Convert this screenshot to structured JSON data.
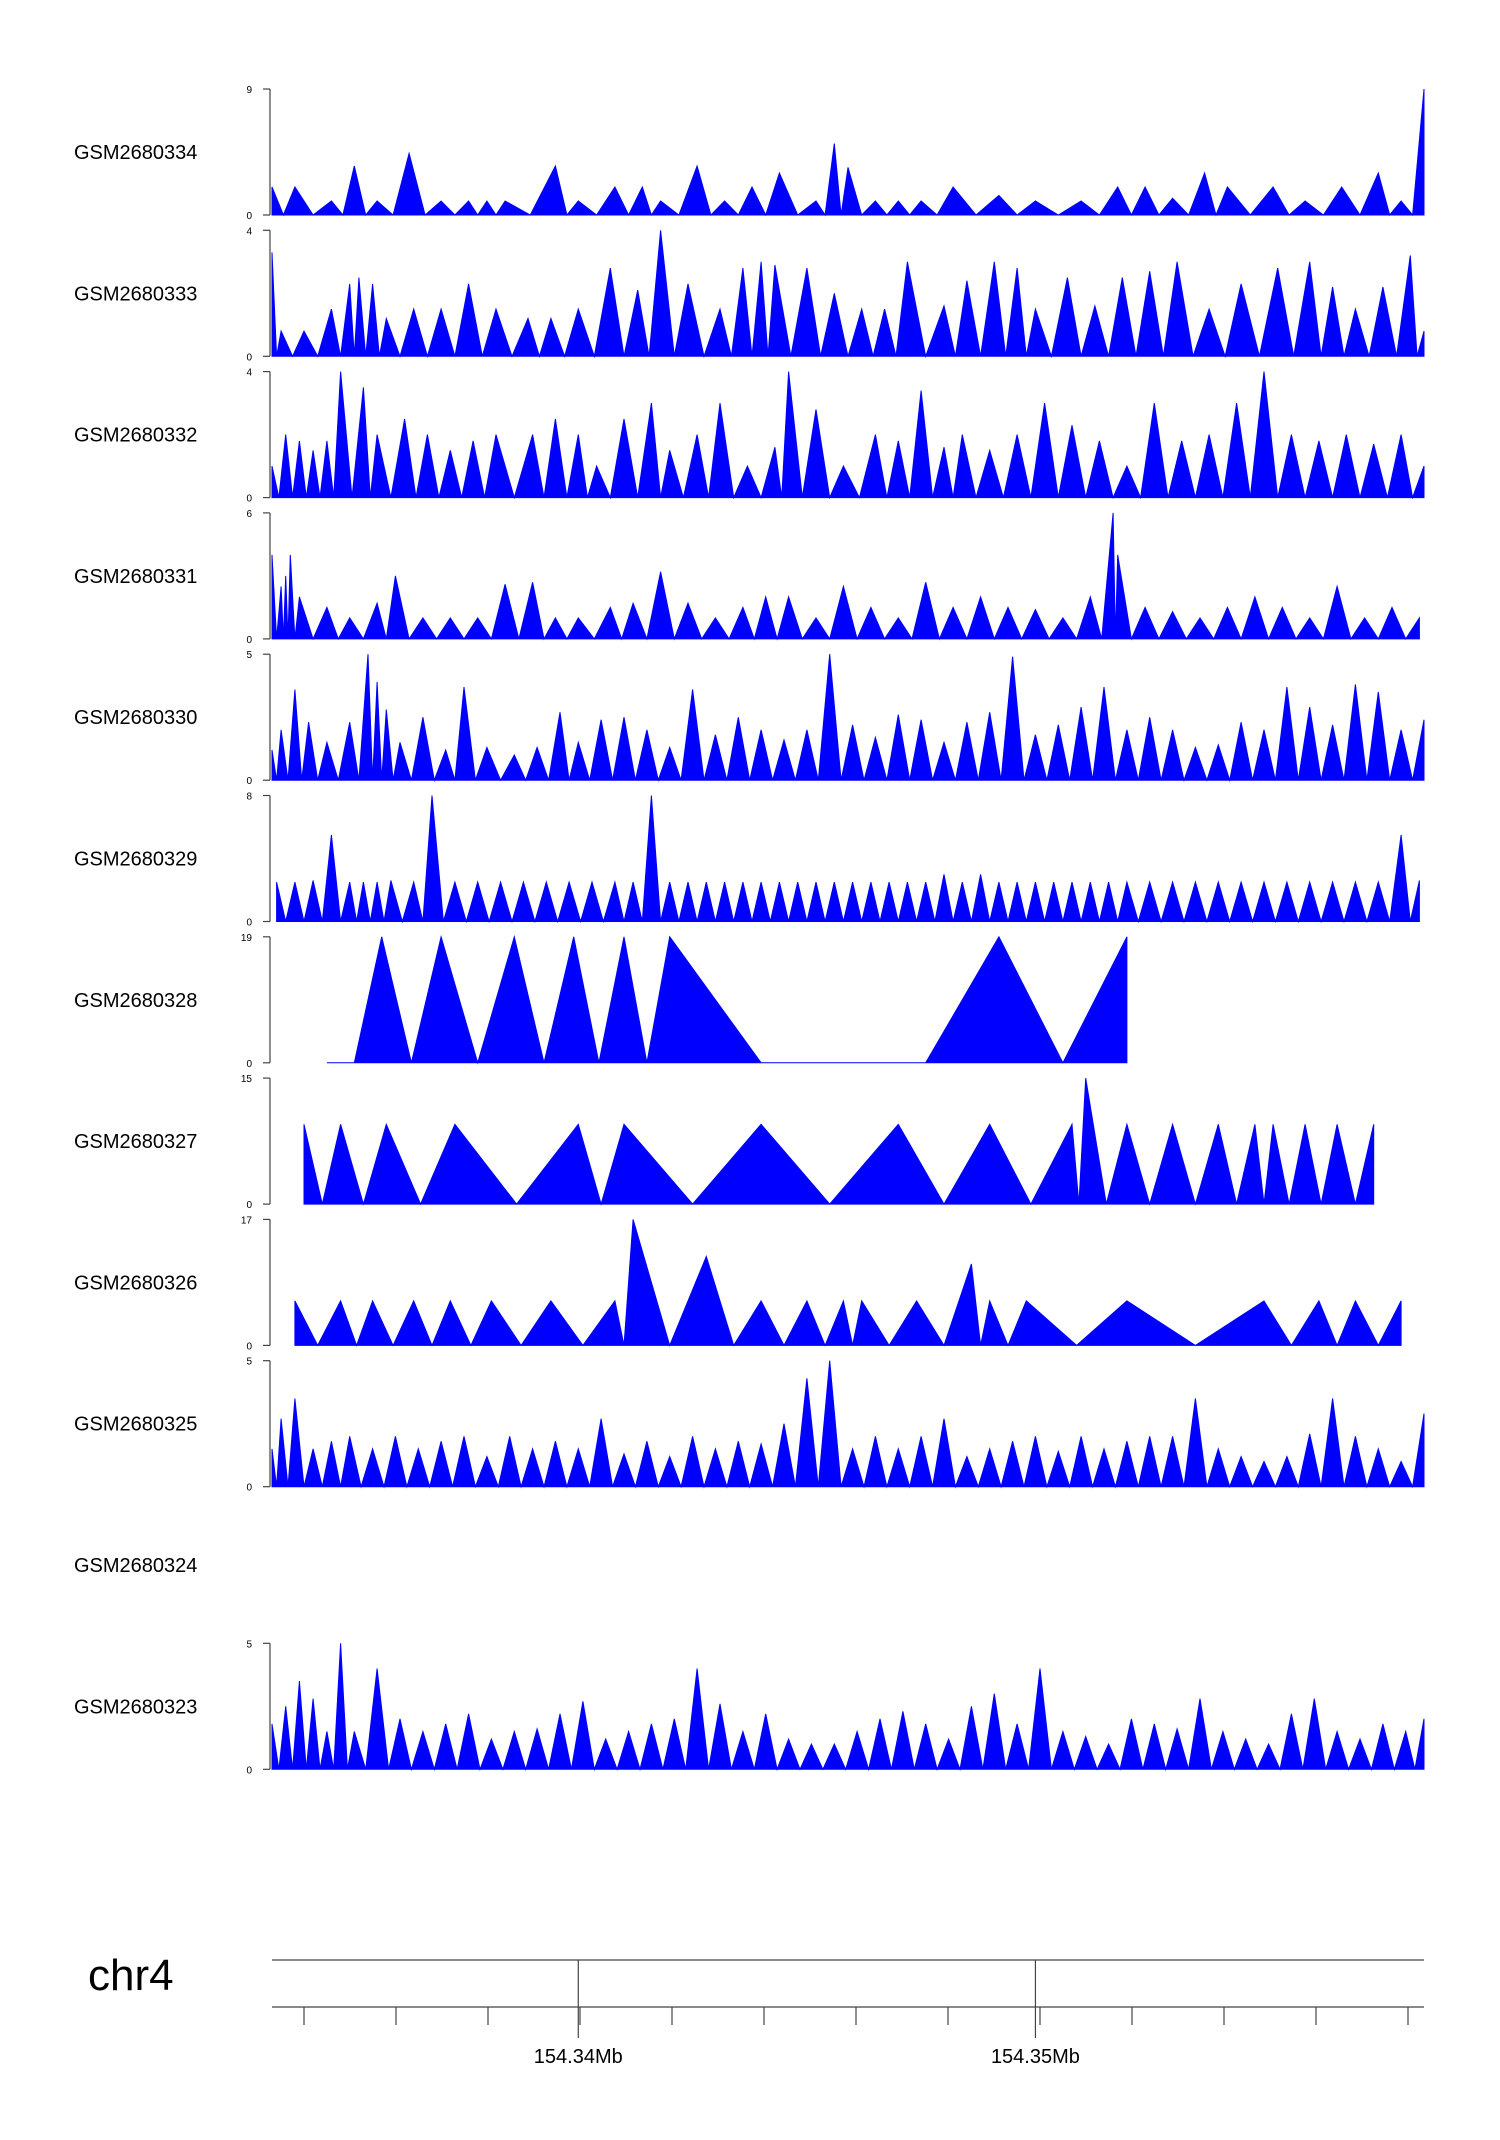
{
  "chart_data": {
    "type": "area",
    "title": "",
    "chromosome": "chr4",
    "xlim_mb": [
      154.3333,
      154.3585
    ],
    "x_ticks": [
      {
        "value": 154.34,
        "label": "154.34Mb"
      },
      {
        "value": 154.35,
        "label": "154.35Mb"
      }
    ],
    "fill_color": "#0000ff",
    "series": [
      {
        "name": "GSM2680334",
        "ymax": 9,
        "x": [
          154.3333,
          154.3338,
          154.3346,
          154.3351,
          154.3356,
          154.3363,
          154.337,
          154.3376,
          154.338,
          154.3384,
          154.3395,
          154.34,
          154.3408,
          154.3414,
          154.3418,
          154.3426,
          154.3432,
          154.3438,
          154.3444,
          154.3452,
          154.3456,
          154.3459,
          154.3465,
          154.347,
          154.3475,
          154.3482,
          154.3492,
          154.35,
          154.351,
          154.3518,
          154.3524,
          154.353,
          154.3537,
          154.3542,
          154.3552,
          154.3559,
          154.3567,
          154.3575,
          154.358,
          154.3585
        ],
        "values": [
          2,
          2,
          1,
          3.5,
          1,
          4.4,
          1,
          1,
          1,
          1,
          3.5,
          1,
          2,
          2,
          1,
          3.5,
          1,
          2,
          3,
          1,
          5.1,
          3.4,
          1,
          1,
          1,
          2,
          1.4,
          1,
          1,
          2,
          2,
          1.2,
          3,
          2,
          2,
          1,
          2,
          3,
          1,
          9
        ]
      },
      {
        "name": "GSM2680333",
        "ymax": 4,
        "x": [
          154.3333,
          154.3335,
          154.334,
          154.3346,
          154.335,
          154.3352,
          154.3355,
          154.3358,
          154.3364,
          154.337,
          154.3376,
          154.3382,
          154.3389,
          154.3394,
          154.34,
          154.3407,
          154.3413,
          154.3418,
          154.3424,
          154.3431,
          154.3436,
          154.344,
          154.3443,
          154.345,
          154.3456,
          154.3462,
          154.3467,
          154.3472,
          154.348,
          154.3485,
          154.3491,
          154.3496,
          154.35,
          154.3507,
          154.3513,
          154.3519,
          154.3525,
          154.3531,
          154.3538,
          154.3545,
          154.3553,
          154.356,
          154.3565,
          154.357,
          154.3576,
          154.3582,
          154.3585
        ],
        "values": [
          3.3,
          0.8,
          0.8,
          1.5,
          2.3,
          2.5,
          2.3,
          1.2,
          1.5,
          1.5,
          2.3,
          1.5,
          1.2,
          1.2,
          1.5,
          2.8,
          2.1,
          4,
          2.3,
          1.5,
          2.8,
          3,
          2.9,
          2.8,
          2,
          1.5,
          1.5,
          3,
          1.6,
          2.4,
          3,
          2.8,
          1.5,
          2.5,
          1.6,
          2.5,
          2.7,
          3,
          1.5,
          2.3,
          2.8,
          3,
          2.2,
          1.5,
          2.2,
          3.2,
          0.8
        ]
      },
      {
        "name": "GSM2680332",
        "ymax": 4,
        "x": [
          154.3333,
          154.3336,
          154.3339,
          154.3342,
          154.3345,
          154.3348,
          154.3353,
          154.3356,
          154.3362,
          154.3367,
          154.3372,
          154.3377,
          154.3382,
          154.339,
          154.3395,
          154.34,
          154.3404,
          154.341,
          154.3416,
          154.342,
          154.3426,
          154.3431,
          154.3437,
          154.3443,
          154.3446,
          154.3452,
          154.3458,
          154.3465,
          154.347,
          154.3475,
          154.348,
          154.3484,
          154.349,
          154.3496,
          154.3502,
          154.3508,
          154.3514,
          154.352,
          154.3526,
          154.3532,
          154.3538,
          154.3544,
          154.355,
          154.3556,
          154.3562,
          154.3568,
          154.3574,
          154.358,
          154.3585
        ],
        "values": [
          1,
          2,
          1.8,
          1.5,
          1.8,
          4,
          3.5,
          2,
          2.5,
          2,
          1.5,
          1.8,
          2,
          2,
          2.5,
          2,
          1,
          2.5,
          3,
          1.5,
          2,
          3,
          1,
          1.6,
          4,
          2.8,
          1,
          2,
          1.8,
          3.4,
          1.6,
          2,
          1.5,
          2,
          3,
          2.3,
          1.8,
          1,
          3,
          1.8,
          2,
          3,
          4,
          2,
          1.8,
          2,
          1.7,
          2,
          1
        ]
      },
      {
        "name": "GSM2680331",
        "ymax": 6,
        "x": [
          154.3333,
          154.3335,
          154.3336,
          154.3337,
          154.3339,
          154.3345,
          154.335,
          154.3356,
          154.336,
          154.3366,
          154.3372,
          154.3378,
          154.3384,
          154.339,
          154.3395,
          154.34,
          154.3407,
          154.3412,
          154.3418,
          154.3424,
          154.343,
          154.3436,
          154.3441,
          154.3446,
          154.3452,
          154.3458,
          154.3464,
          154.347,
          154.3476,
          154.3482,
          154.3488,
          154.3494,
          154.35,
          154.3506,
          154.3512,
          154.3517,
          154.3518,
          154.3524,
          154.353,
          154.3536,
          154.3542,
          154.3548,
          154.3554,
          154.356,
          154.3566,
          154.3572,
          154.3578,
          154.3584
        ],
        "values": [
          4,
          2.5,
          3,
          4,
          2,
          1.5,
          1,
          1.7,
          3,
          1,
          1,
          1,
          2.6,
          2.7,
          1,
          1,
          1.5,
          1.7,
          3.2,
          1.7,
          1,
          1.5,
          2,
          2,
          1,
          2.5,
          1.5,
          1,
          2.7,
          1.5,
          2,
          1.5,
          1.4,
          1,
          2,
          6,
          4,
          1.5,
          1.3,
          1,
          1.5,
          2,
          1.5,
          1,
          2.5,
          1,
          1.5,
          1
        ]
      },
      {
        "name": "GSM2680330",
        "ymax": 5,
        "x": [
          154.3333,
          154.3335,
          154.3338,
          154.3341,
          154.3345,
          154.335,
          154.3354,
          154.3356,
          154.3358,
          154.3361,
          154.3366,
          154.3371,
          154.3375,
          154.338,
          154.3386,
          154.3391,
          154.3396,
          154.34,
          154.3405,
          154.341,
          154.3415,
          154.342,
          154.3425,
          154.343,
          154.3435,
          154.344,
          154.3445,
          154.345,
          154.3455,
          154.346,
          154.3465,
          154.347,
          154.3475,
          154.348,
          154.3485,
          154.349,
          154.3495,
          154.35,
          154.3505,
          154.351,
          154.3515,
          154.352,
          154.3525,
          154.353,
          154.3535,
          154.354,
          154.3545,
          154.355,
          154.3555,
          154.356,
          154.3565,
          154.357,
          154.3575,
          154.358,
          154.3585
        ],
        "values": [
          1.2,
          2,
          3.6,
          2.3,
          1.5,
          2.3,
          5,
          3.9,
          2.8,
          1.5,
          2.5,
          1.2,
          3.7,
          1.3,
          1,
          1.3,
          2.7,
          1.5,
          2.4,
          2.5,
          2,
          1.3,
          3.6,
          1.8,
          2.5,
          2,
          1.6,
          2,
          5,
          2.2,
          1.7,
          2.6,
          2.4,
          1.5,
          2.3,
          2.7,
          4.9,
          1.8,
          2.2,
          2.9,
          3.7,
          2,
          2.5,
          2,
          1.3,
          1.4,
          2.3,
          2,
          3.7,
          2.9,
          2.2,
          3.8,
          3.5,
          2,
          2.4
        ]
      },
      {
        "name": "GSM2680329",
        "ymax": 8,
        "x": [
          154.3334,
          154.3338,
          154.3342,
          154.3346,
          154.335,
          154.3353,
          154.3356,
          154.3359,
          154.3364,
          154.3368,
          154.3373,
          154.3378,
          154.3383,
          154.3388,
          154.3393,
          154.3398,
          154.3403,
          154.3408,
          154.3412,
          154.3416,
          154.342,
          154.3424,
          154.3428,
          154.3432,
          154.3436,
          154.344,
          154.3444,
          154.3448,
          154.3452,
          154.3456,
          154.346,
          154.3464,
          154.3468,
          154.3472,
          154.3476,
          154.348,
          154.3484,
          154.3488,
          154.3492,
          154.3496,
          154.35,
          154.3504,
          154.3508,
          154.3512,
          154.3516,
          154.352,
          154.3525,
          154.353,
          154.3535,
          154.354,
          154.3545,
          154.355,
          154.3555,
          154.356,
          154.3565,
          154.357,
          154.3575,
          154.358,
          154.3584
        ],
        "values": [
          2.5,
          2.5,
          2.6,
          5.5,
          2.5,
          2.5,
          2.5,
          2.6,
          2.5,
          8,
          2.5,
          2.5,
          2.5,
          2.5,
          2.5,
          2.5,
          2.5,
          2.5,
          2.5,
          8,
          2.5,
          2.5,
          2.5,
          2.5,
          2.5,
          2.5,
          2.5,
          2.5,
          2.5,
          2.5,
          2.5,
          2.5,
          2.5,
          2.5,
          2.5,
          3,
          2.5,
          3,
          2.5,
          2.5,
          2.5,
          2.5,
          2.5,
          2.5,
          2.5,
          2.5,
          2.5,
          2.5,
          2.5,
          2.5,
          2.5,
          2.5,
          2.5,
          2.5,
          2.5,
          2.5,
          2.5,
          5.5,
          2.6
        ]
      },
      {
        "name": "GSM2680328",
        "ymax": 19,
        "x": [
          154.3345,
          154.3357,
          154.337,
          154.3386,
          154.3399,
          154.341,
          154.342,
          154.346,
          154.3492,
          154.352
        ],
        "values": [
          0,
          19,
          19,
          19,
          19,
          19,
          19,
          0,
          19,
          19
        ]
      },
      {
        "name": "GSM2680327",
        "ymax": 15,
        "x": [
          154.334,
          154.3348,
          154.3358,
          154.3373,
          154.34,
          154.341,
          154.344,
          154.347,
          154.349,
          154.3508,
          154.3511,
          154.352,
          154.353,
          154.354,
          154.3548,
          154.3552,
          154.3559,
          154.3566,
          154.3574
        ],
        "values": [
          9.5,
          9.5,
          9.5,
          9.5,
          9.5,
          9.5,
          9.5,
          9.5,
          9.5,
          9.5,
          15,
          9.5,
          9.5,
          9.5,
          9.5,
          9.5,
          9.5,
          9.5,
          9.5
        ]
      },
      {
        "name": "GSM2680326",
        "ymax": 17,
        "x": [
          154.3338,
          154.3348,
          154.3355,
          154.3364,
          154.3372,
          154.3381,
          154.3394,
          154.3408,
          154.3412,
          154.3428,
          154.344,
          154.345,
          154.3458,
          154.3462,
          154.3474,
          154.3486,
          154.349,
          154.3498,
          154.352,
          154.355,
          154.3562,
          154.357,
          154.358
        ],
        "values": [
          6,
          6,
          6,
          6,
          6,
          6,
          6,
          6,
          17,
          12,
          6,
          6,
          6,
          6,
          6,
          11,
          6,
          6,
          6,
          6,
          6,
          6,
          6
        ]
      },
      {
        "name": "GSM2680325",
        "ymax": 5,
        "x": [
          154.3333,
          154.3335,
          154.3338,
          154.3342,
          154.3346,
          154.335,
          154.3355,
          154.336,
          154.3365,
          154.337,
          154.3375,
          154.338,
          154.3385,
          154.339,
          154.3395,
          154.34,
          154.3405,
          154.341,
          154.3415,
          154.342,
          154.3425,
          154.343,
          154.3435,
          154.344,
          154.3445,
          154.345,
          154.3455,
          154.346,
          154.3465,
          154.347,
          154.3475,
          154.348,
          154.3485,
          154.349,
          154.3495,
          154.35,
          154.3505,
          154.351,
          154.3515,
          154.352,
          154.3525,
          154.353,
          154.3535,
          154.354,
          154.3545,
          154.355,
          154.3555,
          154.356,
          154.3565,
          154.357,
          154.3575,
          154.358,
          154.3585
        ],
        "values": [
          1.5,
          2.7,
          3.5,
          1.5,
          1.8,
          2,
          1.5,
          2,
          1.5,
          1.8,
          2,
          1.2,
          2,
          1.5,
          1.8,
          1.5,
          2.7,
          1.3,
          1.8,
          1.2,
          2,
          1.5,
          1.8,
          1.7,
          2.5,
          4.3,
          5,
          1.5,
          2,
          1.5,
          2,
          2.7,
          1.2,
          1.5,
          1.8,
          2,
          1.4,
          2,
          1.5,
          1.8,
          2,
          2,
          3.5,
          1.5,
          1.2,
          1,
          1.2,
          2.1,
          3.5,
          2,
          1.5,
          1,
          2.9
        ]
      },
      {
        "name": "GSM2680324",
        "ymax": 0,
        "x": [],
        "values": []
      },
      {
        "name": "GSM2680323",
        "ymax": 5,
        "x": [
          154.3333,
          154.3336,
          154.3339,
          154.3342,
          154.3345,
          154.3348,
          154.3351,
          154.3356,
          154.3361,
          154.3366,
          154.3371,
          154.3376,
          154.3381,
          154.3386,
          154.3391,
          154.3396,
          154.3401,
          154.3406,
          154.3411,
          154.3416,
          154.3421,
          154.3426,
          154.3431,
          154.3436,
          154.3441,
          154.3446,
          154.3451,
          154.3456,
          154.3461,
          154.3466,
          154.3471,
          154.3476,
          154.3481,
          154.3486,
          154.3491,
          154.3496,
          154.3501,
          154.3506,
          154.3511,
          154.3516,
          154.3521,
          154.3526,
          154.3531,
          154.3536,
          154.3541,
          154.3546,
          154.3551,
          154.3556,
          154.3561,
          154.3566,
          154.3571,
          154.3576,
          154.3581,
          154.3585
        ],
        "values": [
          1.8,
          2.5,
          3.5,
          2.8,
          1.5,
          5,
          1.5,
          4,
          2,
          1.5,
          1.8,
          2.2,
          1.2,
          1.5,
          1.6,
          2.2,
          2.7,
          1.2,
          1.5,
          1.8,
          2,
          4,
          2.6,
          1.5,
          2.2,
          1.2,
          1,
          1,
          1.5,
          2,
          2.3,
          1.8,
          1.2,
          2.5,
          3,
          1.8,
          4,
          1.5,
          1.3,
          1,
          2,
          1.8,
          1.6,
          2.8,
          1.5,
          1.2,
          1,
          2.2,
          2.8,
          1.5,
          1.2,
          1.8,
          1.5,
          2
        ]
      }
    ]
  }
}
